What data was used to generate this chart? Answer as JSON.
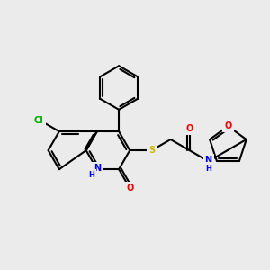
{
  "background_color": "#ebebeb",
  "figsize": [
    3.0,
    3.0
  ],
  "dpi": 100,
  "atom_colors": {
    "C": "#000000",
    "N": "#0000ee",
    "O": "#ee0000",
    "S": "#ccbb00",
    "Cl": "#00aa00",
    "H": "#0000ee"
  },
  "bond_color": "#000000",
  "bond_lw": 1.5,
  "font_size": 7.0,
  "xlim": [
    0.0,
    10.5
  ],
  "ylim": [
    2.0,
    9.5
  ]
}
